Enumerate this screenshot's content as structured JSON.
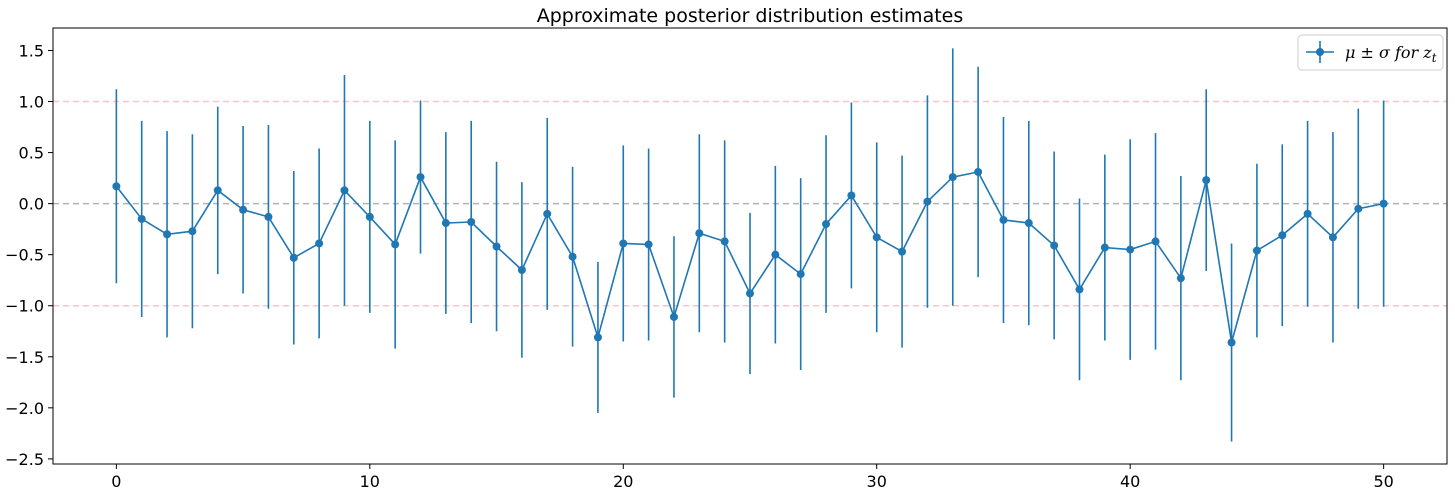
{
  "chart_data": {
    "type": "line",
    "title": "Approximate posterior distribution estimates",
    "xlabel": "",
    "ylabel": "",
    "xlim": [
      -2.5,
      52.5
    ],
    "ylim": [
      -2.55,
      1.72
    ],
    "xticks": [
      0,
      10,
      20,
      30,
      40,
      50
    ],
    "yticks": [
      -2.5,
      -2.0,
      -1.5,
      -1.0,
      -0.5,
      0.0,
      0.5,
      1.0,
      1.5
    ],
    "xtick_labels": [
      "0",
      "10",
      "20",
      "30",
      "40",
      "50"
    ],
    "ytick_labels": [
      "−2.5",
      "−2.0",
      "−1.5",
      "−1.0",
      "−0.5",
      "0.0",
      "0.5",
      "1.0",
      "1.5"
    ],
    "grid": false,
    "legend_position": "top-right",
    "reference_lines": [
      {
        "y": 1.0,
        "color": "#ffc0cb",
        "style": "dashed"
      },
      {
        "y": 0.0,
        "color": "#b3b3b3",
        "style": "dashed"
      },
      {
        "y": -1.0,
        "color": "#ffc0cb",
        "style": "dashed"
      }
    ],
    "series": [
      {
        "name": "μ ± σ for z_t",
        "color": "#1f77b4",
        "x": [
          0,
          1,
          2,
          3,
          4,
          5,
          6,
          7,
          8,
          9,
          10,
          11,
          12,
          13,
          14,
          15,
          16,
          17,
          18,
          19,
          20,
          21,
          22,
          23,
          24,
          25,
          26,
          27,
          28,
          29,
          30,
          31,
          32,
          33,
          34,
          35,
          36,
          37,
          38,
          39,
          40,
          41,
          42,
          43,
          44,
          45,
          46,
          47,
          48,
          49,
          50
        ],
        "y": [
          0.17,
          -0.15,
          -0.3,
          -0.27,
          0.13,
          -0.06,
          -0.13,
          -0.53,
          -0.39,
          0.13,
          -0.13,
          -0.4,
          0.26,
          -0.19,
          -0.18,
          -0.42,
          -0.65,
          -0.1,
          -0.52,
          -1.31,
          -0.39,
          -0.4,
          -1.11,
          -0.29,
          -0.37,
          -0.88,
          -0.5,
          -0.69,
          -0.2,
          0.08,
          -0.33,
          -0.47,
          0.02,
          0.26,
          0.31,
          -0.16,
          -0.19,
          -0.41,
          -0.84,
          -0.43,
          -0.45,
          -0.37,
          -0.73,
          0.23,
          -1.36,
          -0.46,
          -0.31,
          -0.1,
          -0.33,
          -0.05,
          0.0
        ],
        "err": [
          0.95,
          0.96,
          1.01,
          0.95,
          0.82,
          0.82,
          0.9,
          0.85,
          0.93,
          1.13,
          0.94,
          1.02,
          0.75,
          0.89,
          0.99,
          0.83,
          0.86,
          0.94,
          0.88,
          0.74,
          0.96,
          0.94,
          0.79,
          0.97,
          0.99,
          0.79,
          0.87,
          0.94,
          0.87,
          0.91,
          0.93,
          0.94,
          1.04,
          1.26,
          1.03,
          1.01,
          1.0,
          0.92,
          0.89,
          0.91,
          1.08,
          1.06,
          1.0,
          0.89,
          0.97,
          0.85,
          0.89,
          0.91,
          1.03,
          0.98,
          1.01
        ]
      }
    ]
  }
}
